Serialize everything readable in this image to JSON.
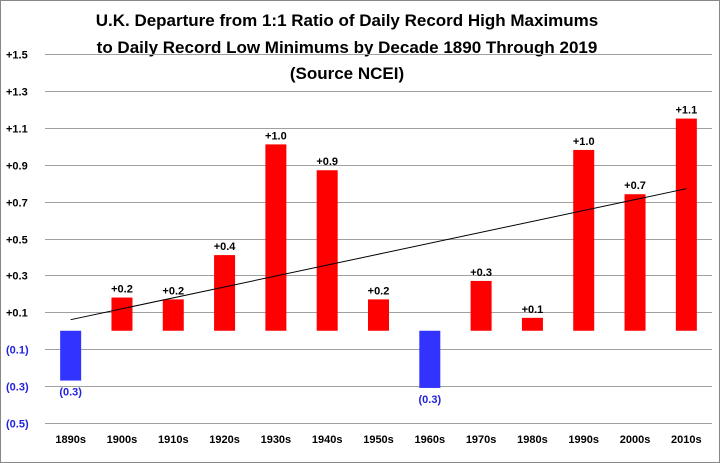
{
  "chart_data": {
    "type": "bar",
    "title_lines": [
      "U.K. Departure from 1:1 Ratio of Daily Record High Maximums",
      "to Daily Record Low Minimums by Decade 1890 Through 2019",
      "(Source NCEI)"
    ],
    "categories": [
      "1890s",
      "1900s",
      "1910s",
      "1920s",
      "1930s",
      "1940s",
      "1950s",
      "1960s",
      "1970s",
      "1980s",
      "1990s",
      "2000s",
      "2010s"
    ],
    "values": [
      -0.27,
      0.18,
      0.17,
      0.41,
      1.01,
      0.87,
      0.17,
      -0.31,
      0.27,
      0.07,
      0.98,
      0.74,
      1.15
    ],
    "data_labels": [
      "(0.3)",
      "+0.2",
      "+0.2",
      "+0.4",
      "+1.0",
      "+0.9",
      "+0.2",
      "(0.3)",
      "+0.3",
      "+0.1",
      "+1.0",
      "+0.7",
      "+1.1"
    ],
    "yticks": [
      1.5,
      1.3,
      1.1,
      0.9,
      0.7,
      0.5,
      0.3,
      0.1,
      -0.1,
      -0.3,
      -0.5
    ],
    "ytick_labels": [
      "+1.5",
      "+1.3",
      "+1.1",
      "+0.9",
      "+0.7",
      "+0.5",
      "+0.3",
      "+0.1",
      "(0.1)",
      "(0.3)",
      "(0.5)"
    ],
    "ylim": [
      -0.5,
      1.5
    ],
    "trendline": {
      "start": 0.06,
      "end": 0.77
    },
    "grid": true,
    "colors": {
      "positive": "#ff0000",
      "negative": "#3333ff",
      "negative_text": "#2222dd",
      "grid": "#a0a0a0",
      "trend": "#000000"
    }
  }
}
